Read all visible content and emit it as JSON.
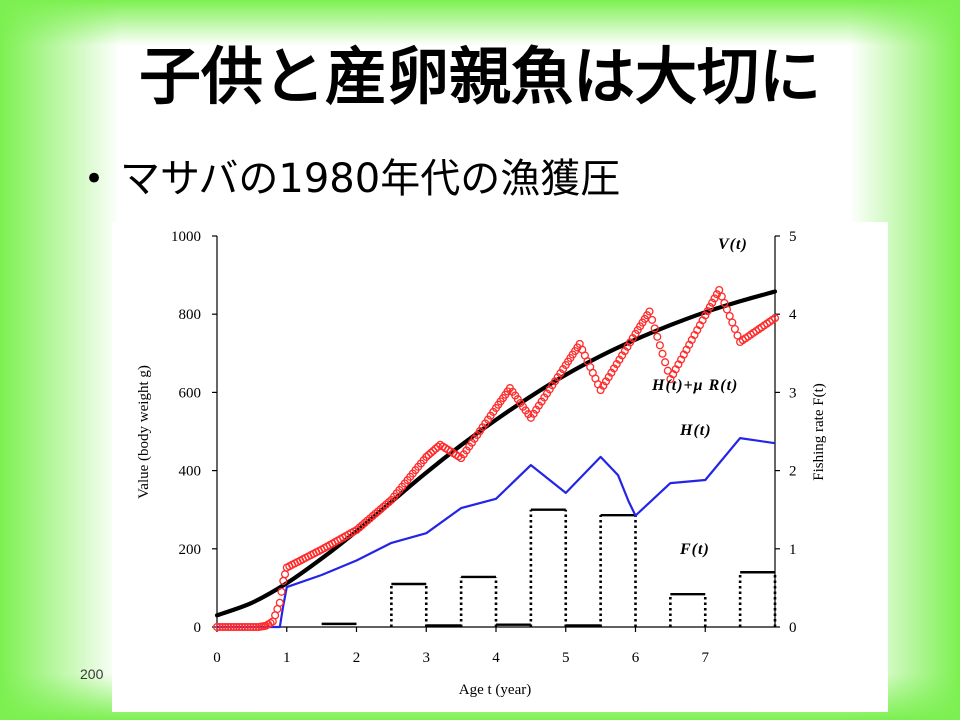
{
  "slide": {
    "title": "子供と産卵親魚は大切に",
    "bullet_marker": "•",
    "bullets": [
      "マサバの1980年代の漁獲圧"
    ],
    "footer_text": "200",
    "colors": {
      "frame": "#7cf050",
      "text": "#000000"
    }
  },
  "chart_data": {
    "type": "line",
    "xlabel": "Age t (year)",
    "ylabel": "Value (body weight g)",
    "y2label": "Fishing rate F(t)",
    "xlim": [
      0,
      8
    ],
    "ylim": [
      0,
      1000
    ],
    "y2lim": [
      0,
      5
    ],
    "xticks": [
      0,
      1,
      2,
      3,
      4,
      5,
      6,
      7
    ],
    "yticks": [
      0,
      200,
      400,
      600,
      800,
      1000
    ],
    "y2ticks": [
      0,
      1,
      2,
      3,
      4,
      5
    ],
    "grid": false,
    "series": [
      {
        "name": "V(t)",
        "type": "line",
        "color": "#000000",
        "x": [
          0,
          0.5,
          1,
          1.5,
          2,
          2.5,
          3,
          3.5,
          4,
          4.5,
          5,
          5.5,
          6,
          6.5,
          7,
          7.5,
          8
        ],
        "y": [
          30,
          62,
          112,
          175,
          245,
          320,
          395,
          465,
          530,
          590,
          645,
          693,
          735,
          772,
          805,
          833,
          858
        ]
      },
      {
        "name": "H(t)+μ R(t)",
        "type": "scatter",
        "color": "#ff2a2a",
        "x": [
          0,
          0.6,
          0.7,
          0.8,
          0.9,
          0.95,
          1,
          1.5,
          2,
          2.5,
          3,
          3.2,
          3.5,
          4,
          4.2,
          4.5,
          5,
          5.2,
          5.5,
          6,
          6.2,
          6.5,
          7,
          7.2,
          7.5,
          8
        ],
        "y": [
          0,
          0,
          3,
          14,
          62,
          118,
          152,
          198,
          248,
          325,
          435,
          466,
          432,
          560,
          611,
          535,
          670,
          724,
          606,
          750,
          807,
          634,
          797,
          862,
          729,
          790
        ]
      },
      {
        "name": "H(t)",
        "type": "line",
        "color": "#2424e6",
        "x": [
          0,
          0.9,
          0.95,
          1,
          1.5,
          2,
          2.5,
          3,
          3.5,
          4,
          4.5,
          5,
          5.5,
          5.75,
          5.9,
          6,
          6.5,
          7,
          7.5,
          8
        ],
        "y": [
          0,
          0,
          55,
          102,
          133,
          170,
          215,
          240,
          304,
          328,
          414,
          343,
          435,
          388,
          322,
          285,
          368,
          376,
          483,
          470
        ]
      },
      {
        "name": "F(t)",
        "type": "step",
        "color": "#000000",
        "right_axis": true,
        "steps": [
          {
            "x0": 1.5,
            "x1": 2.0,
            "value": 0.04
          },
          {
            "x0": 2.5,
            "x1": 3.0,
            "value": 0.55
          },
          {
            "x0": 3.0,
            "x1": 3.5,
            "value": 0.02
          },
          {
            "x0": 3.5,
            "x1": 4.0,
            "value": 0.64
          },
          {
            "x0": 4.0,
            "x1": 4.5,
            "value": 0.03
          },
          {
            "x0": 4.5,
            "x1": 5.0,
            "value": 1.5
          },
          {
            "x0": 5.0,
            "x1": 5.5,
            "value": 0.02
          },
          {
            "x0": 5.5,
            "x1": 6.0,
            "value": 1.43
          },
          {
            "x0": 6.5,
            "x1": 7.0,
            "value": 0.42
          },
          {
            "x0": 7.5,
            "x1": 8.0,
            "value": 0.7
          }
        ]
      }
    ]
  }
}
